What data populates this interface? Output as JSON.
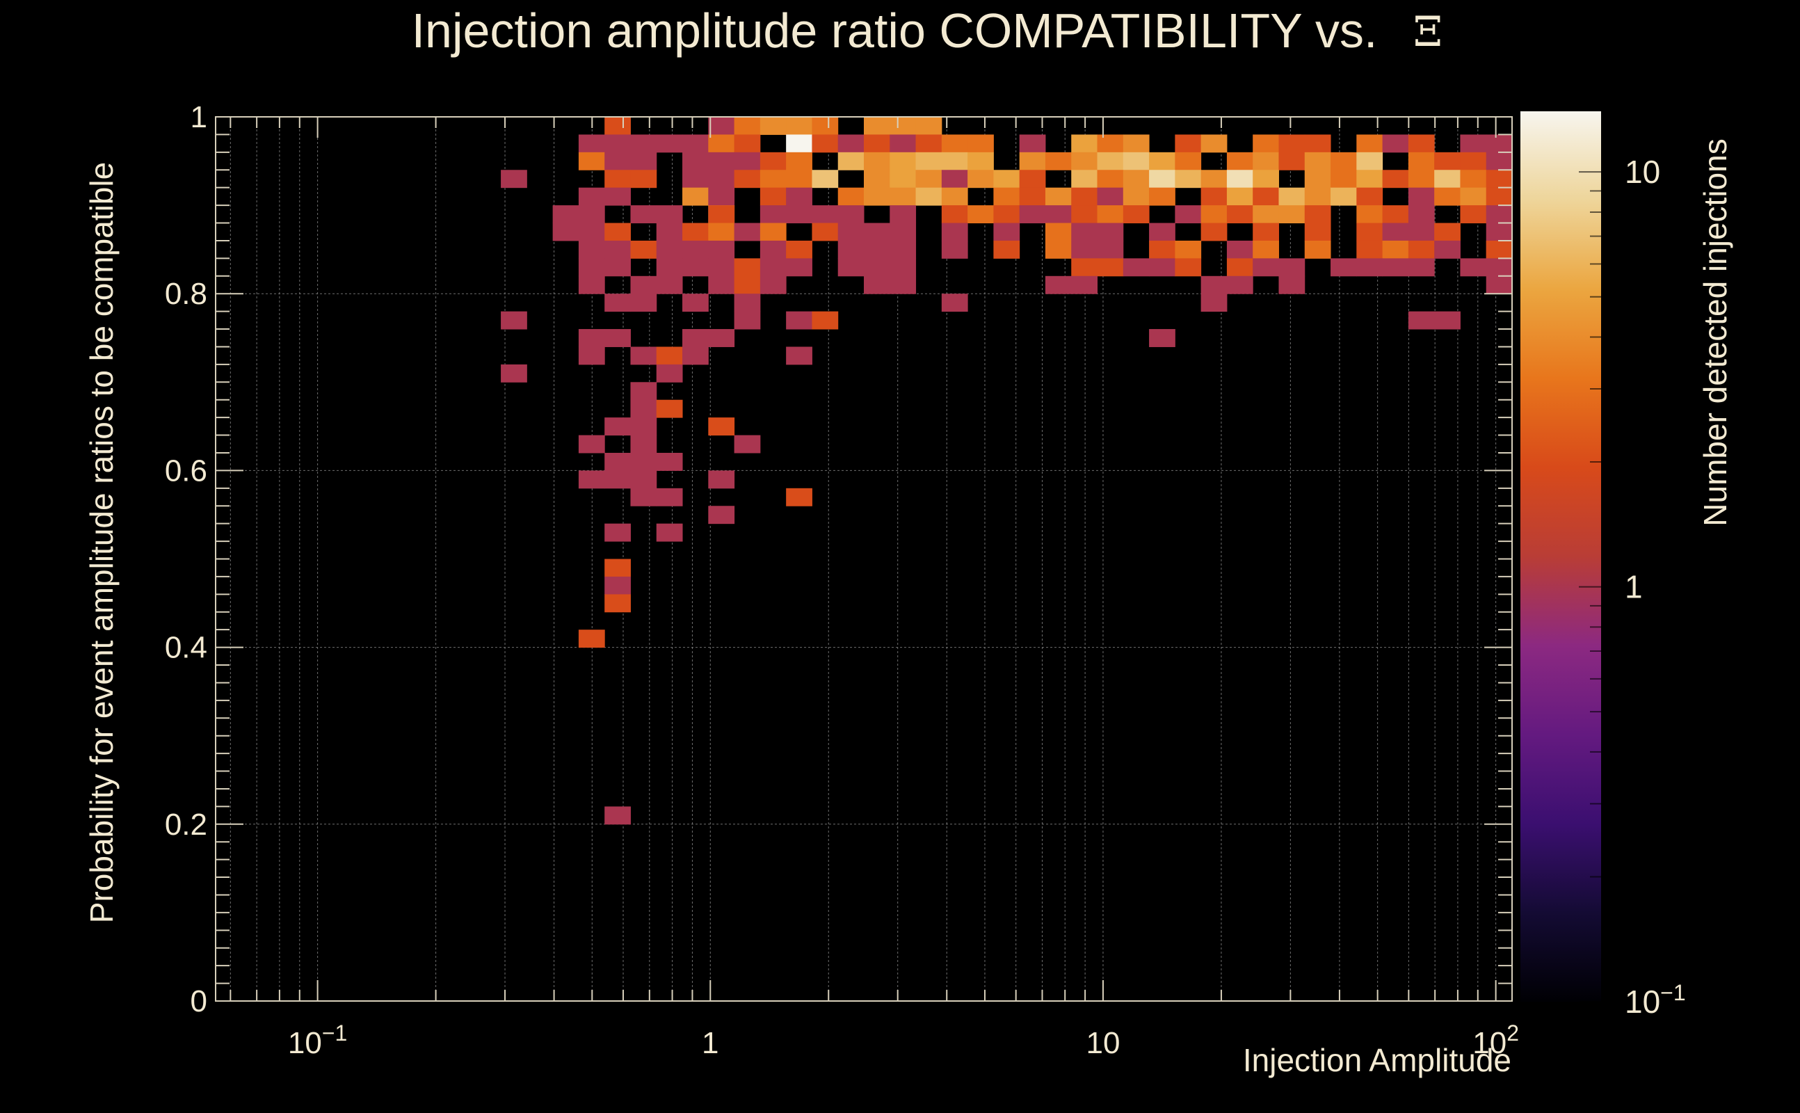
{
  "chart_data": {
    "type": "heatmap",
    "title": "Injection amplitude ratio COMPATIBILITY vs.",
    "title_symbol": "Ξ",
    "xlabel": "Injection Amplitude",
    "ylabel": "Probability for event amplitude ratios to be compatible",
    "colorbar_label": "Number detected injections",
    "x_scale": "log",
    "xlim": [
      0.055,
      110
    ],
    "ylim": [
      0,
      1
    ],
    "x_ticks": [
      {
        "value": 0.1,
        "base": "10",
        "exp": "−1"
      },
      {
        "value": 1,
        "base": "1",
        "exp": ""
      },
      {
        "value": 10,
        "base": "10",
        "exp": ""
      },
      {
        "value": 100,
        "base": "10",
        "exp": "2"
      }
    ],
    "y_ticks": [
      {
        "value": 0,
        "label": "0"
      },
      {
        "value": 0.2,
        "label": "0.2"
      },
      {
        "value": 0.4,
        "label": "0.4"
      },
      {
        "value": 0.6,
        "label": "0.6"
      },
      {
        "value": 0.8,
        "label": "0.8"
      },
      {
        "value": 1,
        "label": "1"
      }
    ],
    "colorbar_scale": "log",
    "colorbar_range": [
      0.1,
      14
    ],
    "colorbar_ticks": [
      {
        "value": 0.1,
        "base": "10",
        "exp": "−1"
      },
      {
        "value": 1,
        "base": "1",
        "exp": ""
      },
      {
        "value": 10,
        "base": "10",
        "exp": ""
      }
    ],
    "bins": {
      "x_count": 50,
      "x_min": 0.055,
      "x_max": 110,
      "y_count": 50,
      "y_min": 0,
      "y_max": 1
    },
    "cells": [
      [
        0.62,
        0.99,
        2
      ],
      [
        1.05,
        0.99,
        1
      ],
      [
        1.25,
        0.99,
        3
      ],
      [
        1.5,
        0.99,
        4
      ],
      [
        1.8,
        0.99,
        4
      ],
      [
        2.1,
        0.99,
        3
      ],
      [
        2.5,
        0.99,
        4
      ],
      [
        3.0,
        0.99,
        4
      ],
      [
        3.5,
        0.99,
        4
      ],
      [
        1.6,
        0.97,
        14
      ],
      [
        0.5,
        0.97,
        1
      ],
      [
        0.6,
        0.97,
        1
      ],
      [
        0.7,
        0.97,
        1
      ],
      [
        0.8,
        0.97,
        1
      ],
      [
        0.95,
        0.97,
        1
      ],
      [
        1.1,
        0.97,
        3
      ],
      [
        1.3,
        0.97,
        2
      ],
      [
        1.85,
        0.97,
        2
      ],
      [
        2.15,
        0.97,
        1
      ],
      [
        2.6,
        0.97,
        2
      ],
      [
        3.1,
        0.97,
        1
      ],
      [
        3.6,
        0.97,
        2
      ],
      [
        4.3,
        0.97,
        3
      ],
      [
        5.1,
        0.97,
        3
      ],
      [
        6.2,
        0.97,
        1
      ],
      [
        8.6,
        0.97,
        5
      ],
      [
        10.5,
        0.97,
        3
      ],
      [
        12.5,
        0.97,
        4
      ],
      [
        17,
        0.97,
        2
      ],
      [
        20.5,
        0.97,
        4
      ],
      [
        25,
        0.97,
        3
      ],
      [
        29,
        0.97,
        2
      ],
      [
        35,
        0.97,
        2
      ],
      [
        48,
        0.97,
        3
      ],
      [
        58,
        0.97,
        1
      ],
      [
        69,
        0.97,
        2
      ],
      [
        83,
        0.97,
        1
      ],
      [
        97,
        0.97,
        1
      ],
      [
        0.47,
        0.95,
        3
      ],
      [
        0.6,
        0.95,
        1
      ],
      [
        0.72,
        0.95,
        1
      ],
      [
        0.85,
        0.95,
        1
      ],
      [
        1.0,
        0.95,
        1
      ],
      [
        1.2,
        0.95,
        1
      ],
      [
        1.4,
        0.95,
        2
      ],
      [
        1.7,
        0.95,
        3
      ],
      [
        2.2,
        0.95,
        6
      ],
      [
        2.6,
        0.95,
        4
      ],
      [
        3.1,
        0.95,
        5
      ],
      [
        3.7,
        0.95,
        6
      ],
      [
        4.4,
        0.95,
        6
      ],
      [
        5.2,
        0.95,
        5
      ],
      [
        6.2,
        0.95,
        4
      ],
      [
        7.4,
        0.95,
        3
      ],
      [
        8.8,
        0.95,
        4
      ],
      [
        10.5,
        0.95,
        6
      ],
      [
        12.5,
        0.95,
        7
      ],
      [
        14.8,
        0.95,
        5
      ],
      [
        17.6,
        0.95,
        3
      ],
      [
        21,
        0.95,
        3
      ],
      [
        25,
        0.95,
        4
      ],
      [
        30,
        0.95,
        2
      ],
      [
        36,
        0.95,
        4
      ],
      [
        42,
        0.95,
        3
      ],
      [
        50,
        0.95,
        7
      ],
      [
        60,
        0.95,
        3
      ],
      [
        71,
        0.95,
        2
      ],
      [
        85,
        0.95,
        2
      ],
      [
        100,
        0.95,
        1
      ],
      [
        0.33,
        0.93,
        1
      ],
      [
        0.56,
        0.93,
        2
      ],
      [
        0.66,
        0.93,
        2
      ],
      [
        0.9,
        0.93,
        1
      ],
      [
        1.05,
        0.93,
        1
      ],
      [
        1.25,
        0.93,
        2
      ],
      [
        1.5,
        0.93,
        3
      ],
      [
        1.75,
        0.93,
        3
      ],
      [
        2.1,
        0.93,
        7
      ],
      [
        2.5,
        0.93,
        4
      ],
      [
        3.0,
        0.93,
        5
      ],
      [
        3.6,
        0.93,
        4
      ],
      [
        4.2,
        0.93,
        1
      ],
      [
        5.0,
        0.93,
        4
      ],
      [
        6.0,
        0.93,
        5
      ],
      [
        7.1,
        0.93,
        2
      ],
      [
        8.5,
        0.93,
        6
      ],
      [
        10,
        0.93,
        3
      ],
      [
        12,
        0.93,
        4
      ],
      [
        14,
        0.93,
        9
      ],
      [
        16.5,
        0.93,
        6
      ],
      [
        19.7,
        0.93,
        4
      ],
      [
        23,
        0.93,
        10
      ],
      [
        27.5,
        0.93,
        5
      ],
      [
        33,
        0.93,
        4
      ],
      [
        39,
        0.93,
        3
      ],
      [
        46,
        0.93,
        5
      ],
      [
        55,
        0.93,
        2
      ],
      [
        65,
        0.93,
        3
      ],
      [
        78,
        0.93,
        7
      ],
      [
        93,
        0.93,
        3
      ],
      [
        104,
        0.93,
        2
      ],
      [
        0.47,
        0.91,
        1
      ],
      [
        0.6,
        0.91,
        1
      ],
      [
        0.95,
        0.91,
        4
      ],
      [
        1.15,
        0.91,
        1
      ],
      [
        1.45,
        0.91,
        2
      ],
      [
        1.8,
        0.91,
        1
      ],
      [
        2.3,
        0.91,
        3
      ],
      [
        2.7,
        0.91,
        4
      ],
      [
        3.2,
        0.91,
        4
      ],
      [
        3.8,
        0.91,
        6
      ],
      [
        4.5,
        0.91,
        4
      ],
      [
        5.4,
        0.91,
        3
      ],
      [
        6.4,
        0.91,
        2
      ],
      [
        7.6,
        0.91,
        4
      ],
      [
        9.0,
        0.91,
        2
      ],
      [
        10.8,
        0.91,
        1
      ],
      [
        12.8,
        0.91,
        4
      ],
      [
        15.2,
        0.91,
        3
      ],
      [
        18.1,
        0.91,
        2
      ],
      [
        21.5,
        0.91,
        5
      ],
      [
        25.6,
        0.91,
        2
      ],
      [
        30.5,
        0.91,
        6
      ],
      [
        36.2,
        0.91,
        4
      ],
      [
        43,
        0.91,
        6
      ],
      [
        51,
        0.91,
        2
      ],
      [
        61,
        0.91,
        1
      ],
      [
        72,
        0.91,
        3
      ],
      [
        86,
        0.91,
        4
      ],
      [
        102,
        0.91,
        2
      ],
      [
        0.4,
        0.89,
        1
      ],
      [
        0.52,
        0.89,
        1
      ],
      [
        0.66,
        0.89,
        1
      ],
      [
        0.78,
        0.89,
        1
      ],
      [
        1.0,
        0.89,
        6
      ],
      [
        1.15,
        0.89,
        2
      ],
      [
        1.35,
        0.89,
        1
      ],
      [
        1.65,
        0.89,
        1
      ],
      [
        2.0,
        0.89,
        1
      ],
      [
        2.4,
        0.89,
        1
      ],
      [
        3.2,
        0.89,
        1
      ],
      [
        3.9,
        0.89,
        2
      ],
      [
        4.6,
        0.89,
        3
      ],
      [
        5.5,
        0.89,
        2
      ],
      [
        6.5,
        0.89,
        1
      ],
      [
        7.7,
        0.89,
        1
      ],
      [
        9.2,
        0.89,
        2
      ],
      [
        10.9,
        0.89,
        3
      ],
      [
        12.9,
        0.89,
        2
      ],
      [
        15.3,
        0.89,
        1
      ],
      [
        18.2,
        0.89,
        3
      ],
      [
        21.6,
        0.89,
        2
      ],
      [
        25.7,
        0.89,
        4
      ],
      [
        30.6,
        0.89,
        4
      ],
      [
        36.3,
        0.89,
        2
      ],
      [
        51,
        0.89,
        3
      ],
      [
        58,
        0.89,
        2
      ],
      [
        69,
        0.89,
        1
      ],
      [
        86,
        0.89,
        2
      ],
      [
        102,
        0.89,
        1
      ],
      [
        0.4,
        0.87,
        1
      ],
      [
        0.5,
        0.87,
        1
      ],
      [
        0.6,
        0.87,
        2
      ],
      [
        0.75,
        0.87,
        1
      ],
      [
        0.95,
        0.87,
        2
      ],
      [
        1.1,
        0.87,
        3
      ],
      [
        1.3,
        0.87,
        1
      ],
      [
        1.55,
        0.87,
        3
      ],
      [
        1.85,
        0.87,
        2
      ],
      [
        2.2,
        0.87,
        1
      ],
      [
        2.6,
        0.87,
        1
      ],
      [
        3.1,
        0.87,
        1
      ],
      [
        4.1,
        0.87,
        1
      ],
      [
        5.8,
        0.87,
        1
      ],
      [
        7.8,
        0.87,
        3
      ],
      [
        9.2,
        0.87,
        1
      ],
      [
        11,
        0.87,
        1
      ],
      [
        13.1,
        0.87,
        1
      ],
      [
        18.4,
        0.87,
        2
      ],
      [
        25.8,
        0.87,
        2
      ],
      [
        36.4,
        0.87,
        2
      ],
      [
        48,
        0.87,
        2
      ],
      [
        57,
        0.87,
        1
      ],
      [
        68,
        0.87,
        1
      ],
      [
        81,
        0.87,
        2
      ],
      [
        96,
        0.87,
        1
      ],
      [
        0.47,
        0.85,
        1
      ],
      [
        0.56,
        0.85,
        1
      ],
      [
        0.66,
        0.85,
        2
      ],
      [
        0.8,
        0.85,
        1
      ],
      [
        0.95,
        0.85,
        1
      ],
      [
        1.15,
        0.85,
        1
      ],
      [
        1.4,
        0.85,
        1
      ],
      [
        1.7,
        0.85,
        2
      ],
      [
        2.2,
        0.85,
        1
      ],
      [
        2.6,
        0.85,
        1
      ],
      [
        3.2,
        0.85,
        1
      ],
      [
        4.5,
        0.85,
        1
      ],
      [
        5.3,
        0.85,
        2
      ],
      [
        7.5,
        0.85,
        3
      ],
      [
        8.9,
        0.85,
        1
      ],
      [
        10.6,
        0.85,
        1
      ],
      [
        14.9,
        0.85,
        2
      ],
      [
        17.7,
        0.85,
        3
      ],
      [
        21,
        0.85,
        1
      ],
      [
        24.7,
        0.85,
        3
      ],
      [
        35,
        0.85,
        3
      ],
      [
        48,
        0.85,
        2
      ],
      [
        56,
        0.85,
        3
      ],
      [
        67,
        0.85,
        2
      ],
      [
        80,
        0.85,
        1
      ],
      [
        95,
        0.85,
        1
      ],
      [
        104,
        0.85,
        2
      ],
      [
        0.52,
        0.83,
        1
      ],
      [
        0.62,
        0.83,
        1
      ],
      [
        0.74,
        0.83,
        1
      ],
      [
        0.88,
        0.83,
        1
      ],
      [
        1.05,
        0.83,
        1
      ],
      [
        1.25,
        0.83,
        2
      ],
      [
        1.45,
        0.83,
        1
      ],
      [
        1.7,
        0.83,
        1
      ],
      [
        2.4,
        0.83,
        1
      ],
      [
        2.75,
        0.83,
        1
      ],
      [
        3.3,
        0.83,
        1
      ],
      [
        8.8,
        0.83,
        2
      ],
      [
        10.5,
        0.83,
        2
      ],
      [
        12.4,
        0.83,
        1
      ],
      [
        14.7,
        0.83,
        1
      ],
      [
        17.5,
        0.83,
        2
      ],
      [
        20.8,
        0.83,
        2
      ],
      [
        24.7,
        0.83,
        1
      ],
      [
        29.4,
        0.83,
        1
      ],
      [
        41,
        0.83,
        1
      ],
      [
        49,
        0.83,
        1
      ],
      [
        58,
        0.83,
        1
      ],
      [
        69,
        0.83,
        1
      ],
      [
        82,
        0.83,
        1
      ],
      [
        97,
        0.83,
        1
      ],
      [
        0.52,
        0.81,
        1
      ],
      [
        0.66,
        0.81,
        1
      ],
      [
        0.78,
        0.81,
        1
      ],
      [
        1.05,
        0.81,
        1
      ],
      [
        1.25,
        0.81,
        2
      ],
      [
        1.5,
        0.81,
        1
      ],
      [
        2.5,
        0.81,
        1
      ],
      [
        3.0,
        0.81,
        1
      ],
      [
        7.8,
        0.81,
        1
      ],
      [
        9.3,
        0.81,
        1
      ],
      [
        18.5,
        0.81,
        1
      ],
      [
        21.9,
        0.81,
        1
      ],
      [
        30,
        0.81,
        1
      ],
      [
        104,
        0.81,
        1
      ],
      [
        0.6,
        0.79,
        1
      ],
      [
        0.72,
        0.79,
        1
      ],
      [
        0.85,
        0.79,
        1
      ],
      [
        1.3,
        0.79,
        1
      ],
      [
        4.0,
        0.79,
        1
      ],
      [
        19.5,
        0.79,
        1
      ],
      [
        0.33,
        0.77,
        1
      ],
      [
        1.3,
        0.77,
        1
      ],
      [
        1.8,
        0.77,
        1
      ],
      [
        2.1,
        0.77,
        2
      ],
      [
        64,
        0.77,
        1
      ],
      [
        76,
        0.77,
        1
      ],
      [
        0.52,
        0.75,
        1
      ],
      [
        0.62,
        0.75,
        1
      ],
      [
        0.95,
        0.75,
        1
      ],
      [
        1.1,
        0.75,
        1
      ],
      [
        13.5,
        0.75,
        1
      ],
      [
        0.52,
        0.73,
        1
      ],
      [
        0.7,
        0.73,
        1
      ],
      [
        0.82,
        0.73,
        2
      ],
      [
        0.95,
        0.73,
        1
      ],
      [
        1.8,
        0.73,
        1
      ],
      [
        0.33,
        0.71,
        1
      ],
      [
        0.82,
        0.71,
        1
      ],
      [
        0.7,
        0.69,
        1
      ],
      [
        0.7,
        0.67,
        1
      ],
      [
        0.84,
        0.67,
        2
      ],
      [
        0.6,
        0.65,
        1
      ],
      [
        0.72,
        0.65,
        1
      ],
      [
        0.99,
        0.65,
        2
      ],
      [
        0.52,
        0.63,
        1
      ],
      [
        0.72,
        0.63,
        1
      ],
      [
        1.2,
        0.63,
        1
      ],
      [
        0.6,
        0.61,
        1
      ],
      [
        0.72,
        0.61,
        1
      ],
      [
        0.84,
        0.61,
        1
      ],
      [
        0.5,
        0.59,
        1
      ],
      [
        0.6,
        0.59,
        1
      ],
      [
        0.7,
        0.59,
        1
      ],
      [
        0.99,
        0.59,
        1
      ],
      [
        0.72,
        0.57,
        1
      ],
      [
        0.84,
        0.57,
        1
      ],
      [
        1.65,
        0.57,
        2
      ],
      [
        0.99,
        0.55,
        1
      ],
      [
        0.6,
        0.53,
        1
      ],
      [
        0.84,
        0.53,
        1
      ],
      [
        0.6,
        0.49,
        2
      ],
      [
        0.6,
        0.47,
        1
      ],
      [
        0.6,
        0.45,
        2
      ],
      [
        0.47,
        0.41,
        2
      ],
      [
        0.6,
        0.21,
        1
      ]
    ]
  }
}
